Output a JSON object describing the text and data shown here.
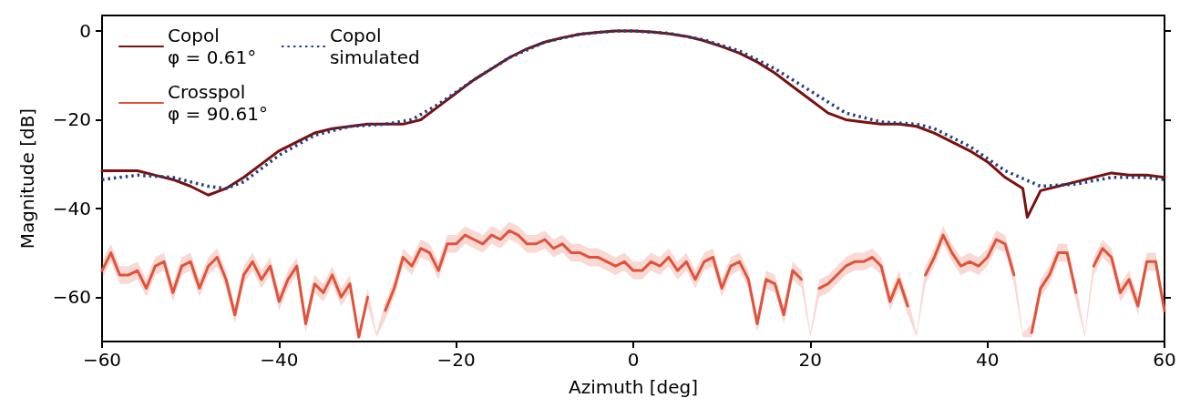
{
  "chart_data": {
    "type": "line",
    "xlabel": "Azimuth [deg]",
    "ylabel": "Magnitude [dB]",
    "xlim": [
      -60,
      60
    ],
    "ylim": [
      -70,
      3.5
    ],
    "xticks": [
      {
        "value": -60,
        "label": "−60"
      },
      {
        "value": -40,
        "label": "−40"
      },
      {
        "value": -20,
        "label": "−20"
      },
      0,
      20,
      40,
      60
    ],
    "yticks": [
      {
        "value": -60,
        "label": "−60"
      },
      {
        "value": -40,
        "label": "−40"
      },
      {
        "value": -20,
        "label": "−20"
      },
      0
    ],
    "grid": false,
    "legend": "top left",
    "marker": "none",
    "series": [
      {
        "name": "Copol\nφ = 0.61°",
        "color": "#7b1010",
        "line_style": "solid",
        "x": [
          -60,
          -58,
          -56,
          -54,
          -52,
          -50,
          -48,
          -46,
          -44,
          -42,
          -40,
          -38,
          -36,
          -34,
          -32,
          -30,
          -28,
          -26,
          -24,
          -22,
          -20,
          -18,
          -16,
          -14,
          -12,
          -10,
          -8,
          -6,
          -4,
          -2,
          0,
          2,
          4,
          6,
          8,
          10,
          12,
          14,
          16,
          18,
          20,
          22,
          24,
          26,
          28,
          30,
          32,
          34,
          36,
          38,
          40,
          42,
          44,
          44.5,
          46,
          48,
          50,
          52,
          54,
          56,
          58,
          60
        ],
        "values": [
          -31.5,
          -31.5,
          -31.5,
          -32.5,
          -33.5,
          -35,
          -37,
          -35.5,
          -33,
          -30,
          -27,
          -25,
          -23,
          -22,
          -21.5,
          -21,
          -21,
          -21,
          -20,
          -17,
          -14,
          -11,
          -8.5,
          -6,
          -4,
          -2.5,
          -1.5,
          -0.7,
          -0.3,
          0,
          0,
          -0.2,
          -0.6,
          -1.2,
          -2.2,
          -3.5,
          -5,
          -7,
          -9.5,
          -12.5,
          -15.5,
          -18.5,
          -20,
          -20.5,
          -21,
          -21,
          -21.5,
          -23,
          -25,
          -27,
          -29.5,
          -33,
          -35.5,
          -42,
          -36,
          -35,
          -34,
          -33,
          -32,
          -32.5,
          -32.5,
          -33
        ]
      },
      {
        "name": "Crosspol\nφ = 90.61°",
        "color": "#e0533a",
        "line_style": "solid",
        "x": [
          -60,
          -59,
          -58,
          -57,
          -56,
          -55,
          -54,
          -53,
          -52,
          -51,
          -50,
          -49,
          -48,
          -47,
          -46,
          -45,
          -44,
          -43,
          -42,
          -41,
          -40,
          -39,
          -38,
          -37,
          -36,
          -35,
          -34,
          -33,
          -32,
          -31,
          -30,
          -29,
          -28,
          -27,
          -26,
          -25,
          -24,
          -23,
          -22,
          -21,
          -20,
          -19,
          -18,
          -17,
          -16,
          -15,
          -14,
          -13,
          -12,
          -11,
          -10,
          -9,
          -8,
          -7,
          -6,
          -5,
          -4,
          -3,
          -2,
          -1,
          0,
          1,
          2,
          3,
          4,
          5,
          6,
          7,
          8,
          9,
          10,
          11,
          12,
          13,
          14,
          15,
          16,
          17,
          18,
          19,
          20,
          21,
          22,
          23,
          24,
          25,
          26,
          27,
          28,
          29,
          30,
          31,
          32,
          33,
          34,
          35,
          36,
          37,
          38,
          39,
          40,
          41,
          42,
          43,
          44,
          45,
          46,
          47,
          48,
          49,
          50,
          51,
          52,
          53,
          54,
          55,
          56,
          57,
          58,
          59,
          60
        ],
        "values": [
          -54,
          -50,
          -55,
          -55,
          -54,
          -58,
          -53,
          -52,
          -59,
          -53,
          -52,
          -58,
          -53,
          -51,
          -56,
          -64,
          -55,
          -52,
          -56,
          -53,
          -61,
          -56,
          -53,
          -66,
          -57,
          -59,
          -55,
          -60,
          -57,
          -69,
          -60,
          null,
          -63,
          -58,
          -51,
          -53,
          -49,
          -50,
          -54,
          -48,
          -48,
          -46,
          -47,
          -48,
          -46,
          -47,
          -45,
          -46,
          -48,
          -48,
          -47,
          -49,
          -48,
          -50,
          -50,
          -51,
          -51,
          -52,
          -53,
          -52,
          -54,
          -54,
          -52,
          -53,
          -51,
          -54,
          -52,
          -56,
          -52,
          -51,
          -58,
          -53,
          -52,
          -56,
          -66,
          -56,
          -57,
          -64,
          -54,
          -56,
          null,
          -58,
          -57,
          -55,
          -53,
          -52,
          -52,
          -51,
          -53,
          -61,
          -56,
          -62,
          null,
          -55,
          -51,
          -46,
          -50,
          -53,
          -52,
          -53,
          -51,
          -47,
          -48,
          -55,
          null,
          -68,
          -58,
          -55,
          -50,
          -50,
          -59,
          null,
          -53,
          -49,
          -51,
          -59,
          -56,
          -62,
          -52,
          -52,
          -63
        ],
        "lower": [
          -56,
          -52,
          -57,
          -57,
          -56,
          -60,
          -55,
          -54,
          -61,
          -55,
          -54,
          -60,
          -55,
          -53,
          -58,
          -66,
          -57,
          -54,
          -58,
          -55,
          -63,
          -58,
          -55,
          -68,
          -59,
          -61,
          -57,
          -62,
          -59,
          -69,
          -62,
          -69,
          -65,
          -60,
          -53,
          -55,
          -51,
          -52,
          -56,
          -50,
          -50,
          -48,
          -49,
          -50,
          -48,
          -49,
          -47,
          -48,
          -50,
          -50,
          -49,
          -51,
          -50,
          -52,
          -52,
          -53,
          -53,
          -54,
          -55,
          -54,
          -56,
          -56,
          -54,
          -55,
          -53,
          -56,
          -54,
          -58,
          -54,
          -53,
          -60,
          -55,
          -54,
          -58,
          -68,
          -58,
          -59,
          -66,
          -56,
          -58,
          -69,
          -60,
          -59,
          -57,
          -55,
          -54,
          -54,
          -53,
          -55,
          -63,
          -58,
          -64,
          -69,
          -57,
          -53,
          -48,
          -52,
          -55,
          -54,
          -55,
          -53,
          -49,
          -50,
          -57,
          -69,
          -69,
          -60,
          -57,
          -52,
          -52,
          -61,
          -69,
          -55,
          -51,
          -53,
          -61,
          -58,
          -64,
          -54,
          -54,
          -65
        ],
        "upper": [
          -52,
          -48,
          -53,
          -53,
          -52,
          -56,
          -51,
          -50,
          -57,
          -51,
          -50,
          -56,
          -51,
          -49,
          -54,
          -62,
          -53,
          -50,
          -54,
          -51,
          -59,
          -54,
          -51,
          -64,
          -55,
          -57,
          -53,
          -58,
          -55,
          -68,
          -58,
          -68,
          -61,
          -56,
          -49,
          -51,
          -47,
          -48,
          -52,
          -46,
          -46,
          -44,
          -45,
          -46,
          -44,
          -45,
          -43,
          -44,
          -46,
          -46,
          -45,
          -47,
          -46,
          -48,
          -48,
          -49,
          -49,
          -50,
          -51,
          -50,
          -52,
          -52,
          -50,
          -51,
          -49,
          -52,
          -50,
          -54,
          -50,
          -49,
          -56,
          -51,
          -50,
          -54,
          -64,
          -54,
          -55,
          -62,
          -52,
          -54,
          -68,
          -56,
          -55,
          -53,
          -51,
          -50,
          -50,
          -49,
          -51,
          -59,
          -54,
          -60,
          -68,
          -53,
          -49,
          -44,
          -48,
          -51,
          -50,
          -51,
          -49,
          -45,
          -46,
          -53,
          -68,
          -66,
          -56,
          -53,
          -48,
          -48,
          -57,
          -68,
          -51,
          -47,
          -49,
          -57,
          -54,
          -60,
          -50,
          -50,
          -61
        ]
      },
      {
        "name": "Copol\nsimulated",
        "color": "#1f3f7f",
        "line_style": "dotted",
        "x": [
          -60,
          -56,
          -52,
          -48,
          -46,
          -44,
          -40,
          -36,
          -32,
          -28,
          -25,
          -22,
          -18,
          -14,
          -10,
          -6,
          -2,
          0,
          4,
          8,
          12,
          16,
          20,
          24,
          28,
          32,
          34,
          38,
          42,
          46,
          50,
          54,
          58,
          60
        ],
        "values": [
          -33.5,
          -32.5,
          -33,
          -35,
          -35.5,
          -34,
          -28,
          -23.5,
          -21.5,
          -21,
          -20,
          -16.5,
          -11,
          -6,
          -2.5,
          -0.7,
          0,
          0,
          -0.5,
          -2,
          -4.5,
          -8.5,
          -13.5,
          -18.5,
          -20.5,
          -21,
          -22,
          -26,
          -31.5,
          -35,
          -34.5,
          -33,
          -33,
          -33.5
        ]
      }
    ]
  }
}
